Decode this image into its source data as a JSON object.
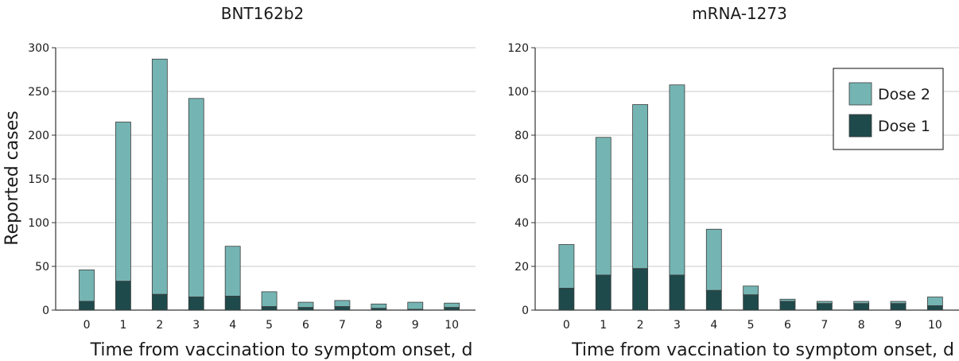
{
  "colors": {
    "dose2": "#74b5b3",
    "dose1": "#1f4a4b",
    "grid": "#c8c8c8",
    "axis": "#333333",
    "bar_stroke": "#3c3c3c"
  },
  "shared": {
    "ylabel": "Reported cases",
    "xlabel": "Time from vaccination to symptom onset, d"
  },
  "legend": {
    "placement": "top-right of right panel",
    "items": [
      {
        "label": "Dose 2",
        "color_key": "dose2"
      },
      {
        "label": "Dose 1",
        "color_key": "dose1"
      }
    ]
  },
  "chart_data": [
    {
      "type": "bar",
      "stacked": true,
      "title": "BNT162b2",
      "xlabel": "Time from vaccination to symptom onset, d",
      "ylabel": "Reported cases",
      "categories": [
        "0",
        "1",
        "2",
        "3",
        "4",
        "5",
        "6",
        "7",
        "8",
        "9",
        "10"
      ],
      "ylim": [
        0,
        300
      ],
      "yticks": [
        0,
        50,
        100,
        150,
        200,
        250,
        300
      ],
      "grid": true,
      "series": [
        {
          "name": "Dose 1",
          "values": [
            10,
            33,
            18,
            15,
            16,
            4,
            3,
            4,
            2,
            1,
            3
          ]
        },
        {
          "name": "Dose 2",
          "values": [
            36,
            182,
            269,
            227,
            57,
            17,
            6,
            7,
            5,
            8,
            5
          ]
        }
      ]
    },
    {
      "type": "bar",
      "stacked": true,
      "title": "mRNA-1273",
      "xlabel": "Time from vaccination to symptom onset, d",
      "categories": [
        "0",
        "1",
        "2",
        "3",
        "4",
        "5",
        "6",
        "7",
        "8",
        "9",
        "10"
      ],
      "ylim": [
        0,
        120
      ],
      "yticks": [
        0,
        20,
        40,
        60,
        80,
        100,
        120
      ],
      "grid": true,
      "series": [
        {
          "name": "Dose 1",
          "values": [
            10,
            16,
            19,
            16,
            9,
            7,
            4,
            3,
            3,
            3,
            2
          ]
        },
        {
          "name": "Dose 2",
          "values": [
            20,
            63,
            75,
            87,
            28,
            4,
            1,
            1,
            1,
            1,
            4
          ]
        }
      ]
    }
  ]
}
